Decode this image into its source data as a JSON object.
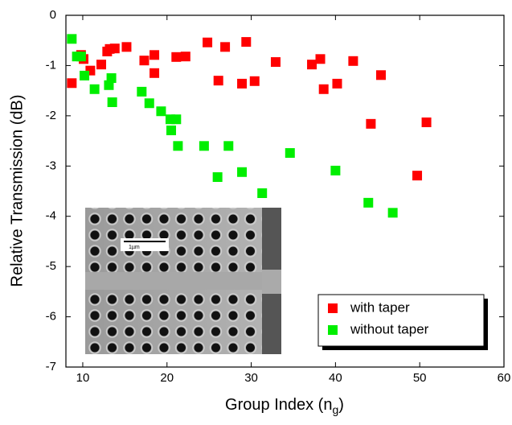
{
  "chart_data": {
    "type": "scatter",
    "xlabel": [
      "Group Index (n",
      "g",
      ")"
    ],
    "ylabel": "Relative Transmission (dB)",
    "xlim": [
      8,
      60
    ],
    "xticks": [
      10,
      20,
      30,
      40,
      50,
      60
    ],
    "ylim": [
      -7,
      0
    ],
    "yticks": [
      -7,
      -6,
      -5,
      -4,
      -3,
      -2,
      -1,
      0
    ],
    "legend": "lower right",
    "inset_label": "1µm",
    "series": [
      {
        "name": "with taper",
        "color": "#ff0000",
        "x": [
          8.7,
          9.8,
          10.1,
          10.9,
          12.2,
          12.9,
          13.2,
          13.8,
          15.2,
          17.3,
          18.5,
          18.5,
          21.1,
          22.2,
          24.8,
          26.1,
          26.9,
          28.9,
          29.4,
          30.4,
          32.9,
          37.2,
          38.2,
          38.6,
          40.2,
          42.1,
          44.2,
          45.4,
          49.7,
          50.8
        ],
        "values": [
          -1.35,
          -0.79,
          -0.87,
          -1.1,
          -0.98,
          -0.72,
          -0.67,
          -0.66,
          -0.63,
          -0.9,
          -0.79,
          -1.15,
          -0.83,
          -0.82,
          -0.54,
          -1.3,
          -0.63,
          -1.36,
          -0.53,
          -1.31,
          -0.93,
          -0.98,
          -0.87,
          -1.47,
          -1.36,
          -0.91,
          -2.16,
          -1.19,
          -3.19,
          -2.13
        ]
      },
      {
        "name": "without taper",
        "color": "#00ee00",
        "x": [
          8.7,
          9.3,
          9.8,
          10.2,
          11.4,
          13.1,
          13.4,
          13.5,
          17.0,
          17.9,
          19.3,
          20.4,
          21.1,
          20.5,
          21.3,
          24.4,
          26.0,
          27.3,
          28.9,
          31.3,
          34.6,
          40.0,
          43.9,
          46.8
        ],
        "values": [
          -0.47,
          -0.82,
          -0.82,
          -1.2,
          -1.47,
          -1.39,
          -1.25,
          -1.73,
          -1.52,
          -1.75,
          -1.91,
          -2.07,
          -2.07,
          -2.29,
          -2.6,
          -2.6,
          -3.22,
          -2.6,
          -3.12,
          -3.54,
          -2.74,
          -3.09,
          -3.73,
          -3.93
        ]
      }
    ]
  }
}
